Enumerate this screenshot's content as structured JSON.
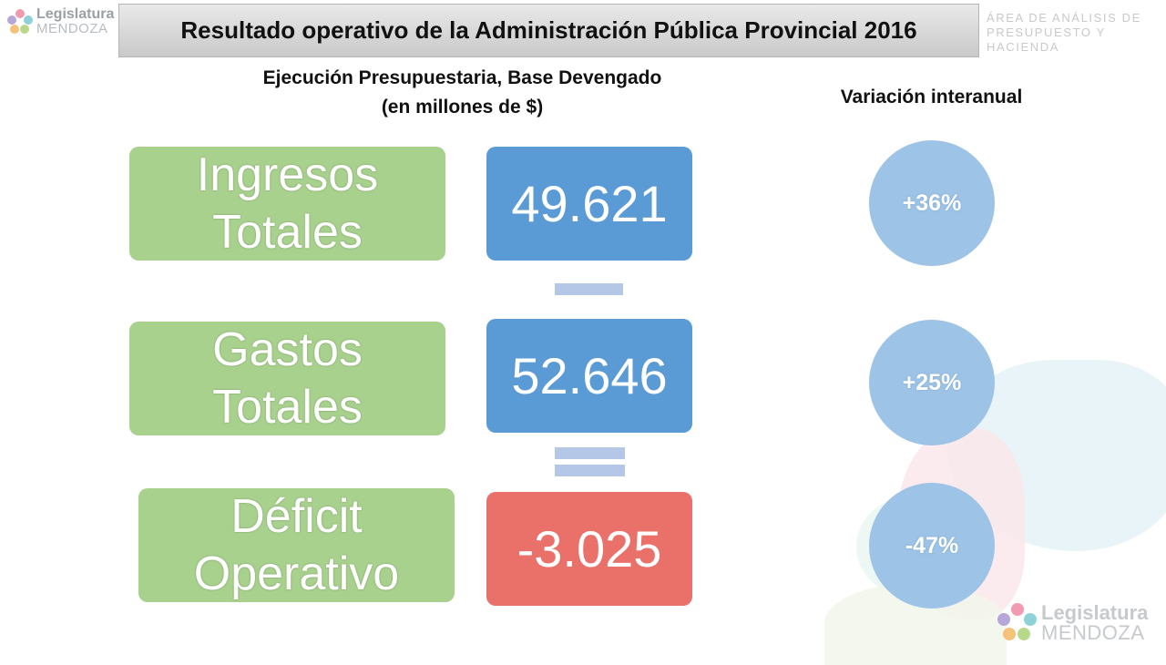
{
  "header": {
    "title": "Resultado operativo de la Administración Pública Provincial 2016",
    "logo_line1": "Legislatura",
    "logo_line2": "MENDOZA",
    "area_line1": "ÁREA DE ANÁLISIS DE",
    "area_line2": "PRESUPUESTO Y HACIENDA"
  },
  "section": {
    "title_line1": "Ejecución Presupuestaria, Base Devengado",
    "title_line2": "(en millones de $)",
    "variation_title": "Variación interanual"
  },
  "rows": [
    {
      "label_line1": "Ingresos",
      "label_line2": "Totales",
      "value": "49.621",
      "variation": "+36%"
    },
    {
      "label_line1": "Gastos",
      "label_line2": "Totales",
      "value": "52.646",
      "variation": "+25%"
    },
    {
      "label_line1": "Déficit",
      "label_line2": "Operativo",
      "value": "-3.025",
      "variation": "-47%"
    }
  ],
  "operators": [
    "minus-sign",
    "equals-sign"
  ],
  "footer": {
    "logo_line1": "Legislatura",
    "logo_line2": "MENDOZA"
  },
  "colors": {
    "label_green": "#a9d18e",
    "value_blue": "#5b9bd5",
    "value_red": "#e9716a",
    "circle_blue": "#9dc3e6",
    "operator_blue": "#b4c7e7"
  }
}
